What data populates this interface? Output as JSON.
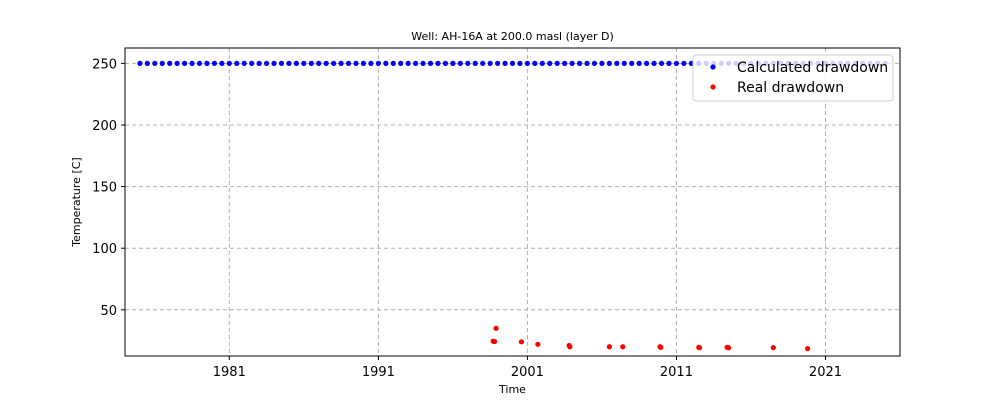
{
  "chart_data": {
    "type": "scatter",
    "title": "Well: AH-16A at 200.0 masl (layer D)",
    "xlabel": "Time",
    "ylabel": "Temperature [C]",
    "xlim": [
      1974.0,
      2026.0
    ],
    "ylim": [
      12.5,
      262.5
    ],
    "xticks": [
      1981,
      1991,
      2001,
      2011,
      2021
    ],
    "yticks": [
      50,
      100,
      150,
      200,
      250
    ],
    "grid": true,
    "legend_position": "top-right",
    "series": [
      {
        "name": "Calculated drawdown",
        "color": "#0000ff",
        "x": [
          1975.0,
          1975.5,
          1976.0,
          1976.5,
          1977.0,
          1977.5,
          1978.0,
          1978.5,
          1979.0,
          1979.5,
          1980.0,
          1980.5,
          1981.0,
          1981.5,
          1982.0,
          1982.5,
          1983.0,
          1983.5,
          1984.0,
          1984.5,
          1985.0,
          1985.5,
          1986.0,
          1986.5,
          1987.0,
          1987.5,
          1988.0,
          1988.5,
          1989.0,
          1989.5,
          1990.0,
          1990.5,
          1991.0,
          1991.5,
          1992.0,
          1992.5,
          1993.0,
          1993.5,
          1994.0,
          1994.5,
          1995.0,
          1995.5,
          1996.0,
          1996.5,
          1997.0,
          1997.5,
          1998.0,
          1998.5,
          1999.0,
          1999.5,
          2000.0,
          2000.5,
          2001.0,
          2001.5,
          2002.0,
          2002.5,
          2003.0,
          2003.5,
          2004.0,
          2004.5,
          2005.0,
          2005.5,
          2006.0,
          2006.5,
          2007.0,
          2007.5,
          2008.0,
          2008.5,
          2009.0,
          2009.5,
          2010.0,
          2010.5,
          2011.0,
          2011.5,
          2012.0,
          2012.5,
          2013.0,
          2013.5,
          2014.0,
          2014.5,
          2015.0,
          2015.5,
          2016.0,
          2016.5,
          2017.0,
          2017.5,
          2018.0,
          2018.5,
          2019.0,
          2019.5,
          2020.0,
          2020.5,
          2021.0,
          2021.5,
          2022.0,
          2022.5,
          2023.0,
          2023.5,
          2024.0,
          2024.5,
          2025.0
        ],
        "y": [
          250,
          250,
          250,
          250,
          250,
          250,
          250,
          250,
          250,
          250,
          250,
          250,
          250,
          250,
          250,
          250,
          250,
          250,
          250,
          250,
          250,
          250,
          250,
          250,
          250,
          250,
          250,
          250,
          250,
          250,
          250,
          250,
          250,
          250,
          250,
          250,
          250,
          250,
          250,
          250,
          250,
          250,
          250,
          250,
          250,
          250,
          250,
          250,
          250,
          250,
          250,
          250,
          250,
          250,
          250,
          250,
          250,
          250,
          250,
          250,
          250,
          250,
          250,
          250,
          250,
          250,
          250,
          250,
          250,
          250,
          250,
          250,
          250,
          250,
          250,
          250,
          250,
          250,
          250,
          250,
          250,
          250,
          250,
          250,
          250,
          250,
          250,
          250,
          250,
          250,
          250,
          250,
          250,
          250,
          250,
          250,
          250,
          250,
          250,
          250,
          250
        ]
      },
      {
        "name": "Real drawdown",
        "color": "#ff0000",
        "x": [
          1998.7,
          1998.8,
          1998.9,
          2000.6,
          2001.7,
          2003.8,
          2003.85,
          2006.5,
          2007.4,
          2009.9,
          2009.95,
          2012.5,
          2012.55,
          2014.4,
          2014.5,
          2017.5,
          2019.8
        ],
        "y": [
          24.5,
          24.2,
          35.0,
          24.0,
          22.0,
          21.0,
          20.0,
          20.0,
          20.0,
          20.0,
          19.5,
          19.5,
          19.2,
          19.5,
          19.2,
          19.3,
          18.5
        ]
      }
    ]
  }
}
